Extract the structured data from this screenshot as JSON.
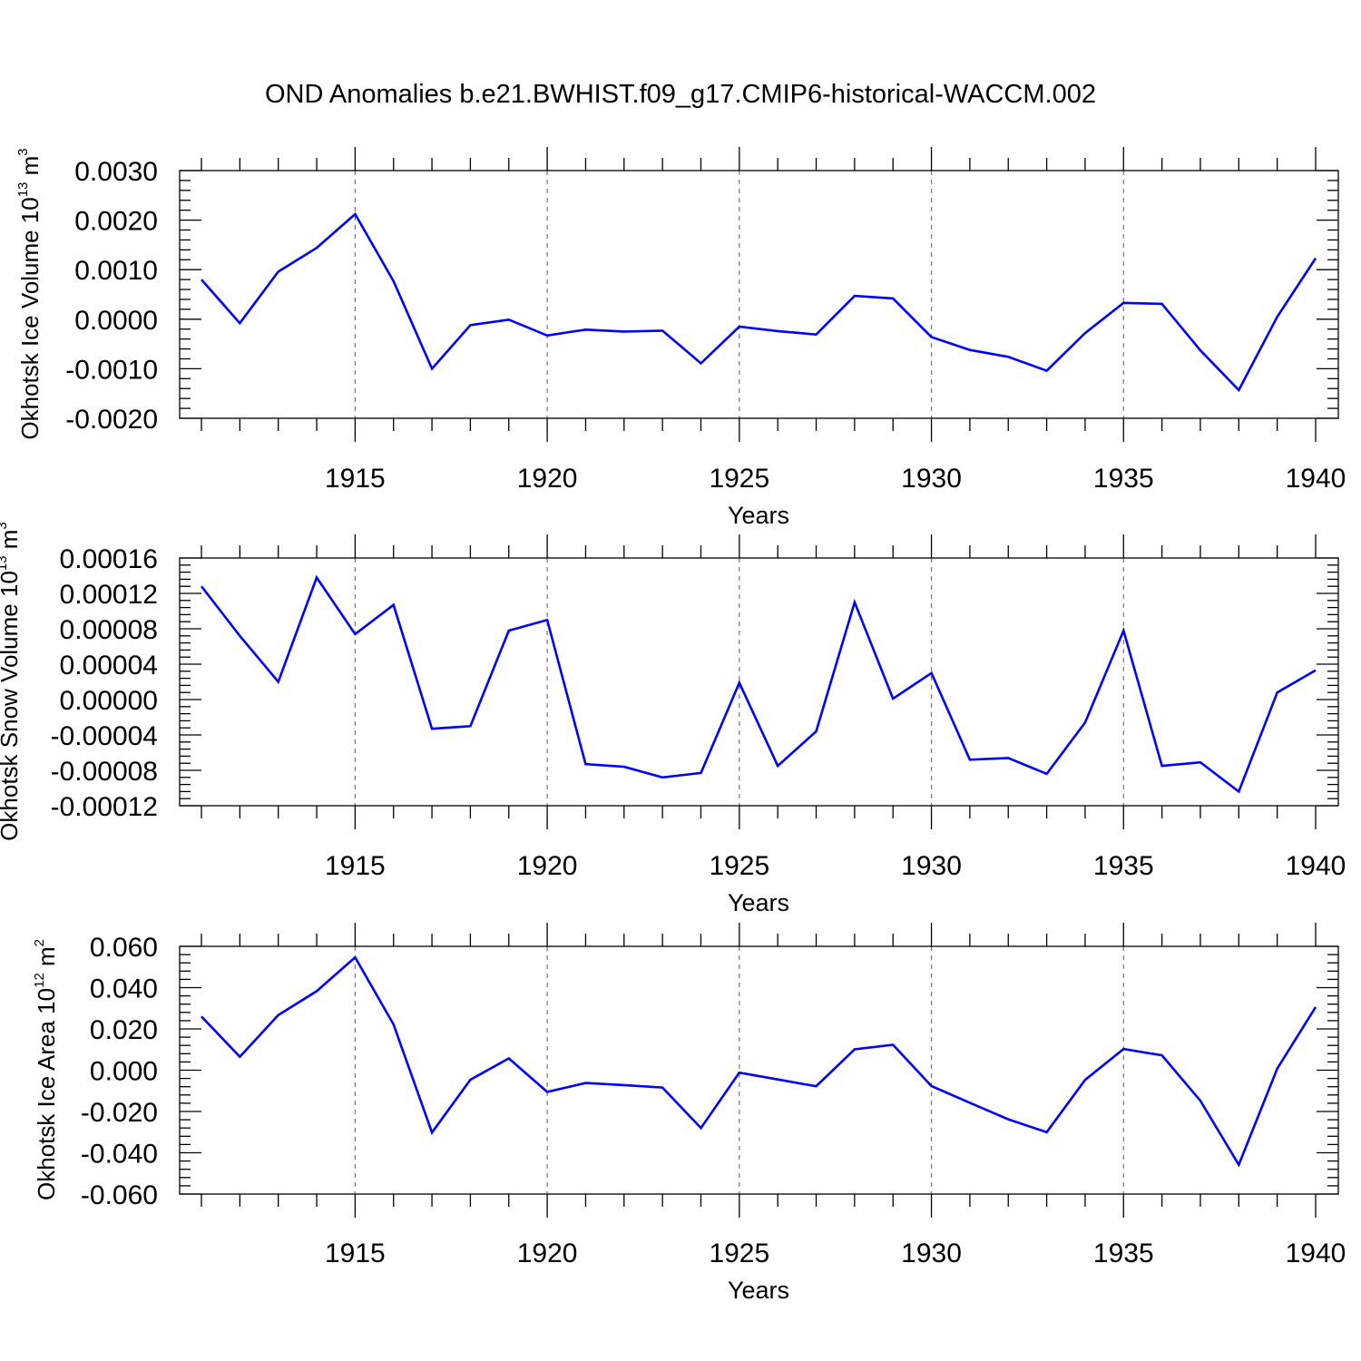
{
  "title": "OND Anomalies b.e21.BWHIST.f09_g17.CMIP6-historical-WACCM.002",
  "colors": {
    "line": "#0000ff",
    "grid": "#777777"
  },
  "chart_data": [
    {
      "type": "line",
      "title": "OND Anomalies b.e21.BWHIST.f09_g17.CMIP6-historical-WACCM.002",
      "ylabel": "Okhotsk Ice Volume 10",
      "ylabel_exp": "13",
      "ylabel_unit": " m",
      "ylabel_unit_exp": "3",
      "xlabel": "Years",
      "xlim": [
        1911,
        1940
      ],
      "ylim": [
        -0.002,
        0.003
      ],
      "xticks": [
        "1915",
        "1920",
        "1925",
        "1930",
        "1935",
        "1940"
      ],
      "yticks": [
        {
          "value": 0.003,
          "label": "0.0030"
        },
        {
          "value": 0.002,
          "label": "0.0020"
        },
        {
          "value": 0.001,
          "label": "0.0010"
        },
        {
          "value": 0.0,
          "label": "0.0000"
        },
        {
          "value": -0.001,
          "label": "-0.0010"
        },
        {
          "value": -0.002,
          "label": "-0.0020"
        }
      ],
      "grid": "x dashed",
      "x": [
        1911,
        1912,
        1913,
        1914,
        1915,
        1916,
        1917,
        1918,
        1919,
        1920,
        1921,
        1922,
        1923,
        1924,
        1925,
        1926,
        1927,
        1928,
        1929,
        1930,
        1931,
        1932,
        1933,
        1934,
        1935,
        1936,
        1937,
        1938,
        1939,
        1940
      ],
      "values": [
        0.0008,
        -8e-05,
        0.00096,
        0.00144,
        0.00212,
        0.00077,
        -0.001,
        -0.00012,
        -1e-05,
        -0.00033,
        -0.00021,
        -0.00025,
        -0.00023,
        -0.00089,
        -0.00015,
        -0.00024,
        -0.00031,
        0.00047,
        0.00042,
        -0.00036,
        -0.00062,
        -0.00076,
        -0.00104,
        -0.00028,
        0.00033,
        0.00031,
        -0.00063,
        -0.00143,
        5e-05,
        0.00123
      ]
    },
    {
      "type": "line",
      "ylabel": "Okhotsk Snow Volume 10",
      "ylabel_exp": "13",
      "ylabel_unit": " m",
      "ylabel_unit_exp": "3",
      "xlabel": "Years",
      "xlim": [
        1911,
        1940
      ],
      "ylim": [
        -0.00012,
        0.00016
      ],
      "xticks": [
        "1915",
        "1920",
        "1925",
        "1930",
        "1935",
        "1940"
      ],
      "yticks": [
        {
          "value": 0.00016,
          "label": "0.00016"
        },
        {
          "value": 0.00012,
          "label": "0.00012"
        },
        {
          "value": 8e-05,
          "label": "0.00008"
        },
        {
          "value": 4e-05,
          "label": "0.00004"
        },
        {
          "value": 0.0,
          "label": "0.00000"
        },
        {
          "value": -4e-05,
          "label": "-0.00004"
        },
        {
          "value": -8e-05,
          "label": "-0.00008"
        },
        {
          "value": -0.00012,
          "label": "-0.00012"
        }
      ],
      "grid": "x dashed",
      "x": [
        1911,
        1912,
        1913,
        1914,
        1915,
        1916,
        1917,
        1918,
        1919,
        1920,
        1921,
        1922,
        1923,
        1924,
        1925,
        1926,
        1927,
        1928,
        1929,
        1930,
        1931,
        1932,
        1933,
        1934,
        1935,
        1936,
        1937,
        1938,
        1939,
        1940
      ],
      "values": [
        0.000128,
        7.2e-05,
        2e-05,
        0.000138,
        7.4e-05,
        0.000107,
        -3.3e-05,
        -3e-05,
        7.8e-05,
        9e-05,
        -7.3e-05,
        -7.6e-05,
        -8.8e-05,
        -8.3e-05,
        1.9e-05,
        -7.5e-05,
        -3.6e-05,
        0.00011,
        1e-06,
        3e-05,
        -6.8e-05,
        -6.6e-05,
        -8.4e-05,
        -2.6e-05,
        7.8e-05,
        -7.5e-05,
        -7.1e-05,
        -0.000104,
        8e-06,
        3.3e-05
      ]
    },
    {
      "type": "line",
      "ylabel": "Okhotsk Ice Area 10",
      "ylabel_exp": "12",
      "ylabel_unit": " m",
      "ylabel_unit_exp": "2",
      "xlabel": "Years",
      "xlim": [
        1911,
        1940
      ],
      "ylim": [
        -0.06,
        0.06
      ],
      "xticks": [
        "1915",
        "1920",
        "1925",
        "1930",
        "1935",
        "1940"
      ],
      "yticks": [
        {
          "value": 0.06,
          "label": "0.060"
        },
        {
          "value": 0.04,
          "label": "0.040"
        },
        {
          "value": 0.02,
          "label": "0.020"
        },
        {
          "value": 0.0,
          "label": "0.000"
        },
        {
          "value": -0.02,
          "label": "-0.020"
        },
        {
          "value": -0.04,
          "label": "-0.040"
        },
        {
          "value": -0.06,
          "label": "-0.060"
        }
      ],
      "grid": "x dashed",
      "x": [
        1911,
        1912,
        1913,
        1914,
        1915,
        1916,
        1917,
        1918,
        1919,
        1920,
        1921,
        1922,
        1923,
        1924,
        1925,
        1926,
        1927,
        1928,
        1929,
        1930,
        1931,
        1932,
        1933,
        1934,
        1935,
        1936,
        1937,
        1938,
        1939,
        1940
      ],
      "values": [
        0.026,
        0.0065,
        0.0267,
        0.0383,
        0.0547,
        0.0222,
        -0.0302,
        -0.0046,
        0.0057,
        -0.0105,
        -0.0062,
        -0.0072,
        -0.0084,
        -0.028,
        -0.0012,
        -0.0045,
        -0.0078,
        0.0101,
        0.0123,
        -0.0077,
        -0.0158,
        -0.0238,
        -0.03,
        -0.0047,
        0.0103,
        0.0072,
        -0.0148,
        -0.0458,
        0.0008,
        0.0306
      ]
    }
  ]
}
